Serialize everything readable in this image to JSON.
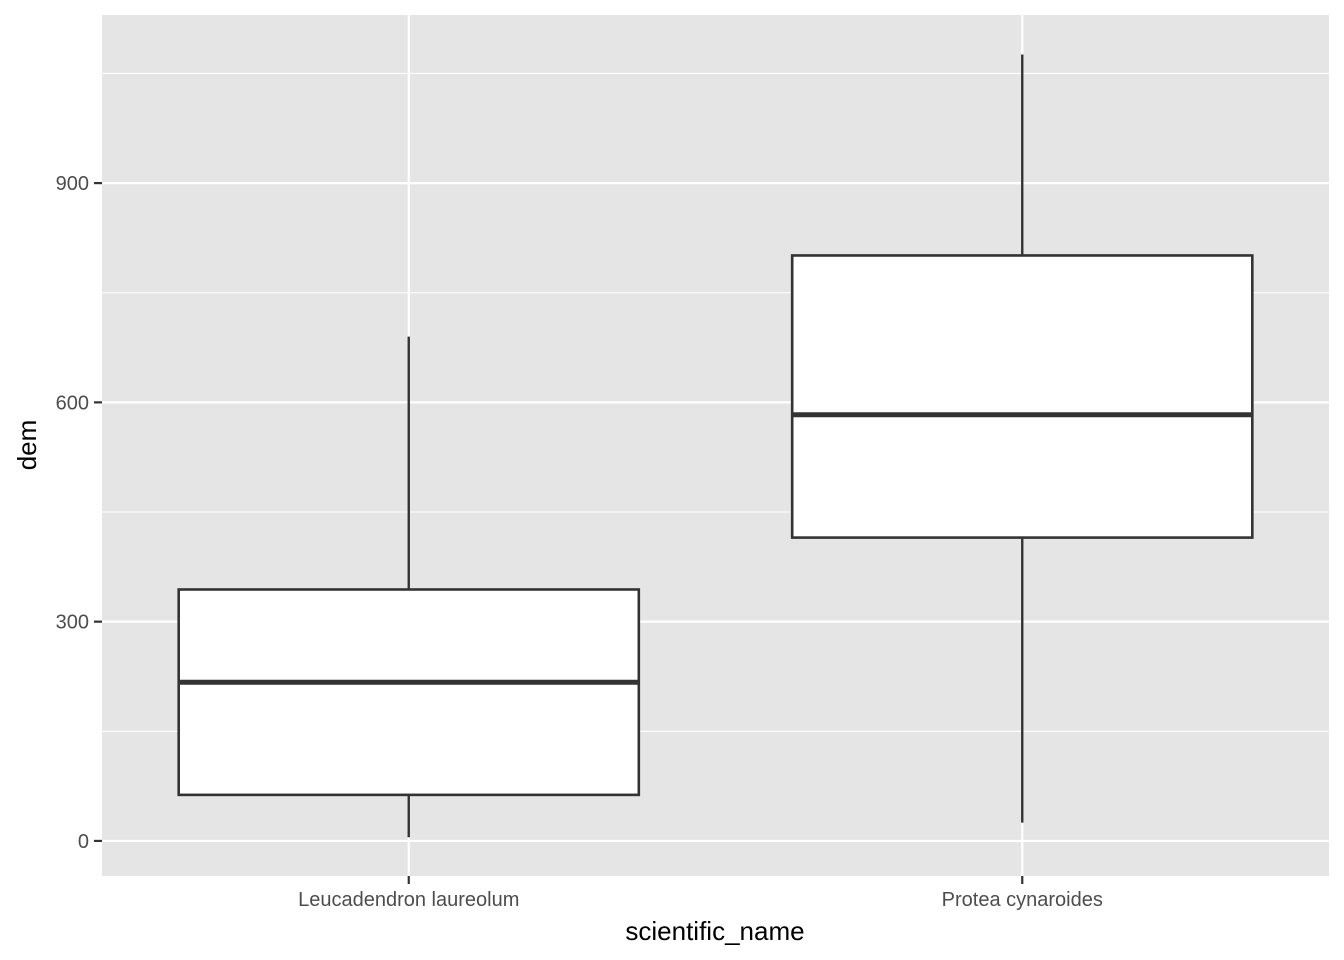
{
  "chart_data": {
    "type": "boxplot",
    "xlabel": "scientific_name",
    "ylabel": "dem",
    "categories": [
      "Leucadendron laureolum",
      "Protea cynaroides"
    ],
    "boxes": [
      {
        "category": "Leucadendron laureolum",
        "whisker_low": 5,
        "q1": 63,
        "median": 217,
        "q3": 344,
        "whisker_high": 690
      },
      {
        "category": "Protea cynaroides",
        "whisker_low": 25,
        "q1": 415,
        "median": 583,
        "q3": 801,
        "whisker_high": 1076
      }
    ],
    "ylim": [
      -48,
      1130
    ],
    "y_major_ticks": [
      0,
      300,
      600,
      900
    ],
    "y_minor_ticks": [
      150,
      450,
      750,
      1050
    ],
    "grid": true,
    "colors": {
      "panel_background": "#e5e5e5",
      "grid_line": "#ffffff",
      "box_fill": "#ffffff",
      "box_stroke": "#333333",
      "tick_text": "#4d4d4d",
      "tick_mark": "#333333",
      "axis_title": "#000000"
    }
  }
}
